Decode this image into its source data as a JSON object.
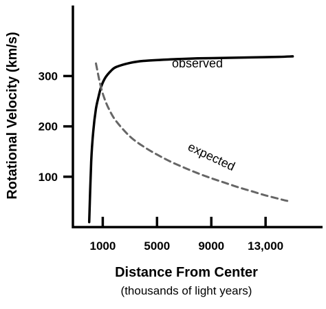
{
  "chart_data": {
    "type": "line",
    "xlabel": "Distance From Center",
    "xlabel_sub": "(thousands of light years)",
    "ylabel": "Rotational Velocity (km/s)",
    "x_ticks": [
      {
        "value": 1000,
        "label": "1000"
      },
      {
        "value": 5000,
        "label": "5000"
      },
      {
        "value": 9000,
        "label": "9000"
      },
      {
        "value": 13000,
        "label": "13,000"
      }
    ],
    "y_ticks": [
      {
        "value": 100,
        "label": "100"
      },
      {
        "value": 200,
        "label": "200"
      },
      {
        "value": 300,
        "label": "300"
      }
    ],
    "xlim": [
      -1200,
      17200
    ],
    "ylim": [
      0,
      440
    ],
    "grid": false,
    "series": [
      {
        "name": "observed",
        "style": "solid",
        "color": "#000000",
        "x": [
          0,
          150,
          300,
          500,
          700,
          900,
          1200,
          1600,
          2000,
          3000,
          4000,
          6000,
          8000,
          10000,
          12000,
          14000,
          15000
        ],
        "y": [
          10,
          130,
          190,
          235,
          260,
          280,
          297,
          310,
          318,
          326,
          330,
          333,
          335,
          336,
          337,
          338,
          339
        ]
      },
      {
        "name": "expected",
        "style": "dashed",
        "color": "#666666",
        "x": [
          500,
          800,
          1100,
          1500,
          2000,
          3000,
          4000,
          5000,
          6000,
          7000,
          8000,
          9000,
          10000,
          11000,
          12000,
          13000,
          14000,
          14600
        ],
        "y": [
          325,
          285,
          257,
          232,
          210,
          180,
          160,
          144,
          130,
          118,
          107,
          97,
          88,
          79,
          71,
          63,
          56,
          52
        ]
      }
    ]
  }
}
